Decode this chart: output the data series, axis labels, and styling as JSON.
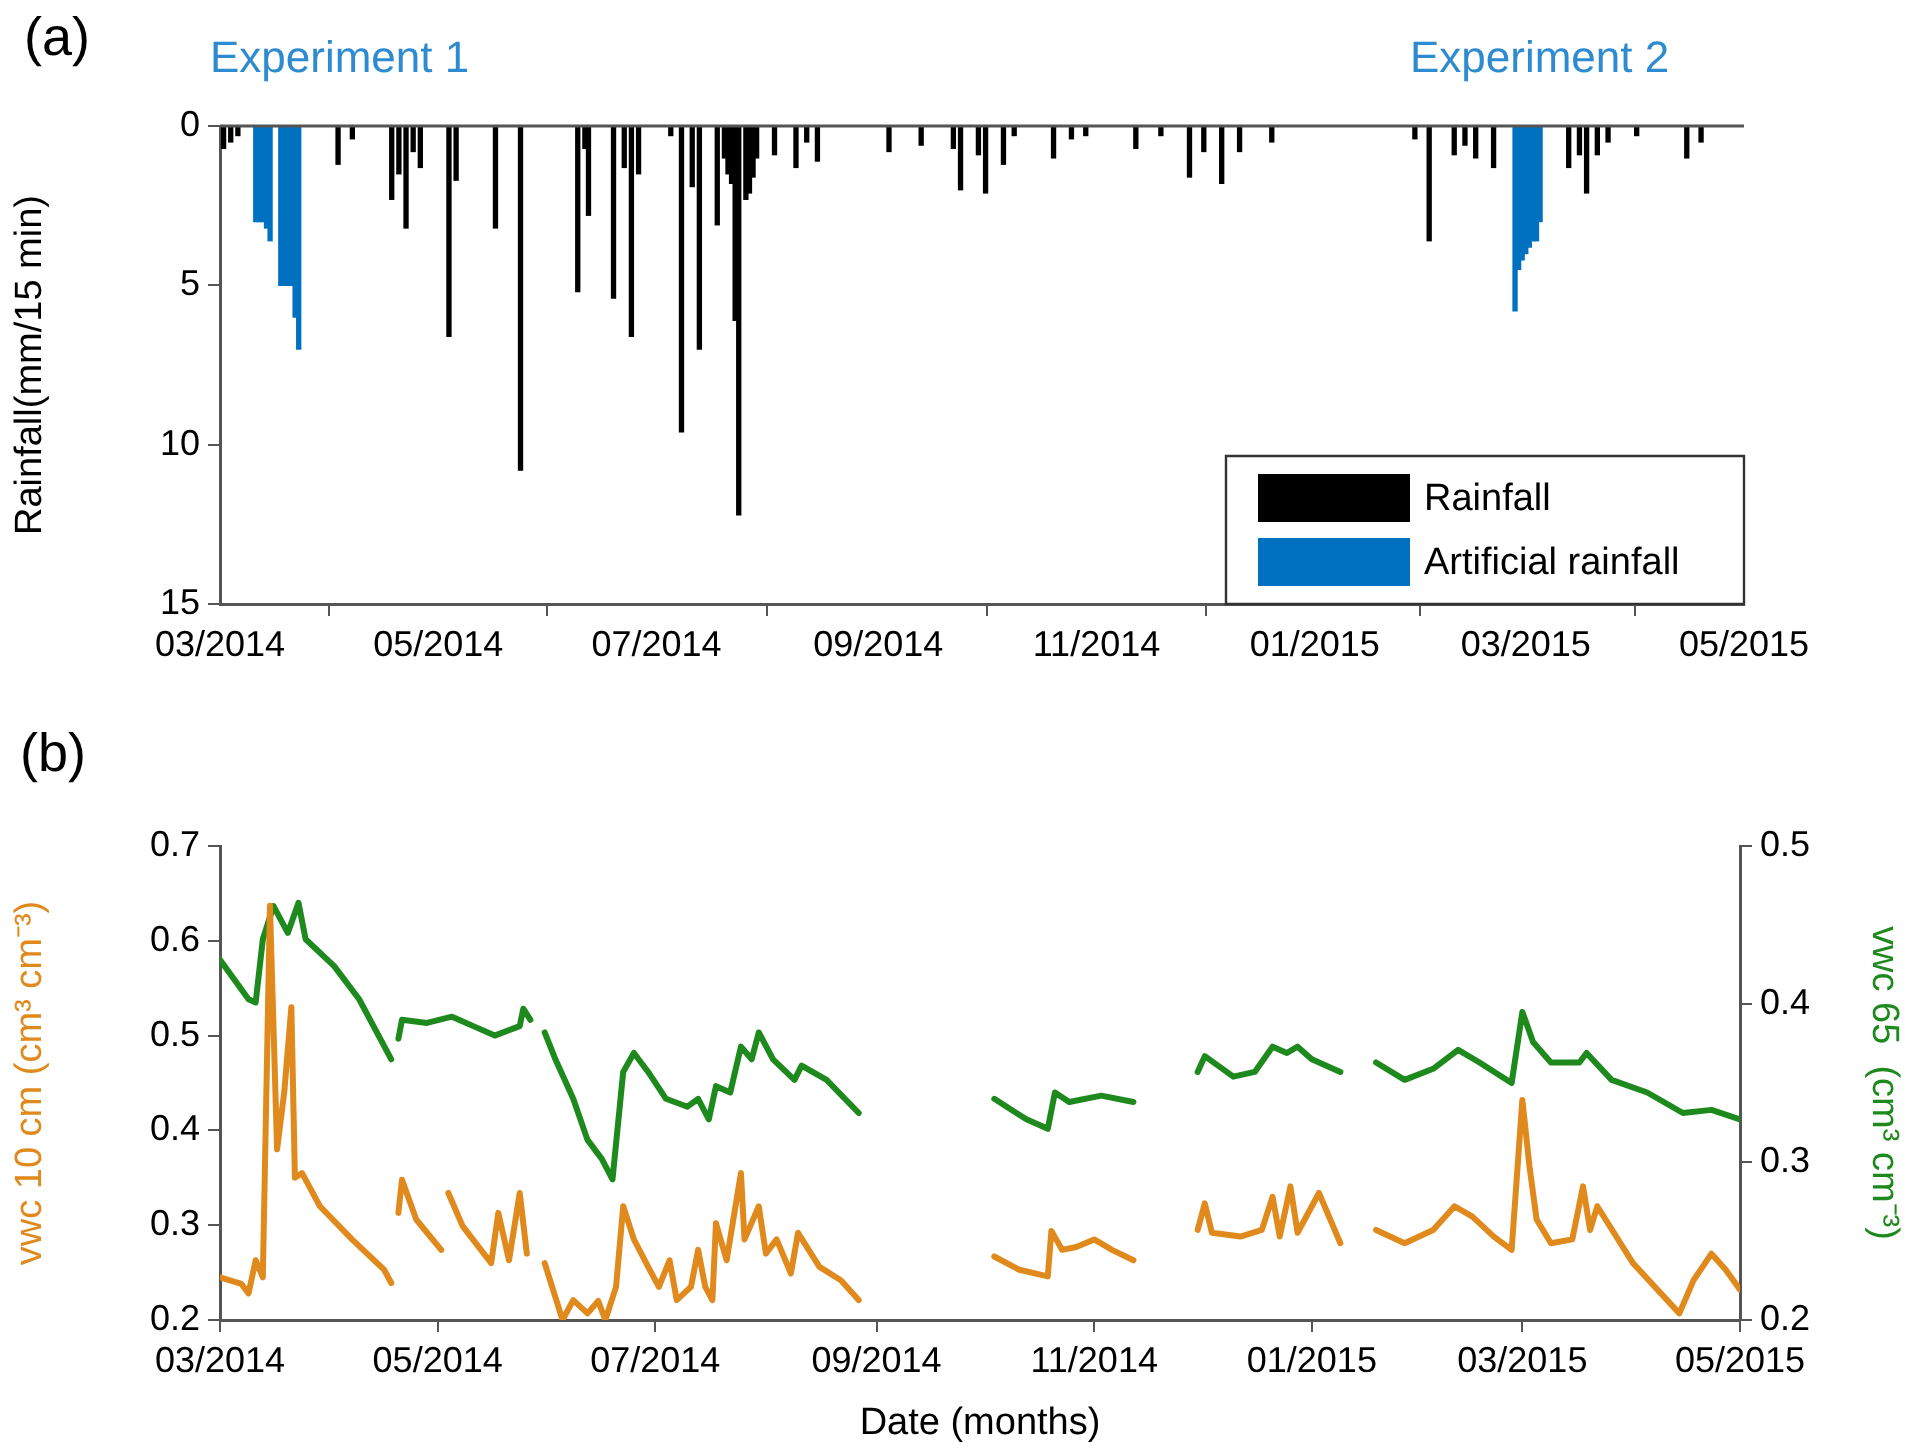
{
  "chart_data": [
    {
      "type": "bar",
      "ylabel": "Rainfall(mm/15 min)",
      "annotations": [
        "(a)",
        "Experiment 1",
        "Experiment 2"
      ],
      "legend": "bottom right",
      "xlim": [
        "2014-03-01",
        "2015-05-01"
      ],
      "xticks": [
        {
          "value": "2014-03-01",
          "label": "03/2014"
        },
        {
          "value": "2014-05-01",
          "label": "05/2014"
        },
        {
          "value": "2014-07-01",
          "label": "07/2014"
        },
        {
          "value": "2014-09-01",
          "label": "09/2014"
        },
        {
          "value": "2014-11-01",
          "label": "11/2014"
        },
        {
          "value": "2015-01-01",
          "label": "01/2015"
        },
        {
          "value": "2015-03-01",
          "label": "03/2015"
        },
        {
          "value": "2015-05-01",
          "label": "05/2015"
        }
      ],
      "ylim": [
        15,
        0
      ],
      "yticks": [
        0,
        5,
        10,
        15
      ],
      "series": [
        {
          "name": "Rainfall",
          "color": "#000000",
          "x": [
            "2014-03-02",
            "2014-03-04",
            "2014-03-06",
            "2014-04-03",
            "2014-04-07",
            "2014-04-18",
            "2014-04-20",
            "2014-04-22",
            "2014-04-24",
            "2014-04-26",
            "2014-05-04",
            "2014-05-06",
            "2014-05-17",
            "2014-05-24",
            "2014-06-09",
            "2014-06-11",
            "2014-06-12",
            "2014-06-19",
            "2014-06-22",
            "2014-06-24",
            "2014-06-26",
            "2014-07-05",
            "2014-07-08",
            "2014-07-11",
            "2014-07-13",
            "2014-07-18",
            "2014-07-20",
            "2014-07-21",
            "2014-07-22",
            "2014-07-23",
            "2014-07-24",
            "2014-07-26",
            "2014-07-27",
            "2014-07-28",
            "2014-07-29",
            "2014-08-03",
            "2014-08-09",
            "2014-08-12",
            "2014-08-15",
            "2014-09-04",
            "2014-09-13",
            "2014-09-22",
            "2014-09-24",
            "2014-09-29",
            "2014-10-01",
            "2014-10-06",
            "2014-10-09",
            "2014-10-20",
            "2014-10-25",
            "2014-10-29",
            "2014-11-12",
            "2014-11-19",
            "2014-11-27",
            "2014-12-01",
            "2014-12-06",
            "2014-12-11",
            "2014-12-20",
            "2015-01-29",
            "2015-02-02",
            "2015-02-09",
            "2015-02-12",
            "2015-02-15",
            "2015-02-20",
            "2015-03-13",
            "2015-03-16",
            "2015-03-18",
            "2015-03-21",
            "2015-03-24",
            "2015-04-01",
            "2015-04-15",
            "2015-04-19"
          ],
          "values": [
            0.7,
            0.5,
            0.3,
            1.2,
            0.4,
            2.3,
            1.5,
            3.2,
            0.8,
            1.3,
            6.6,
            1.7,
            3.2,
            10.8,
            5.2,
            0.7,
            2.8,
            5.4,
            1.3,
            6.6,
            1.5,
            0.3,
            9.6,
            1.9,
            7.0,
            3.1,
            1.0,
            1.5,
            1.8,
            6.1,
            12.2,
            2.3,
            2.1,
            1.6,
            1.0,
            0.9,
            1.3,
            0.5,
            1.1,
            0.8,
            0.6,
            0.7,
            2.0,
            0.9,
            2.1,
            1.2,
            0.3,
            1.0,
            0.4,
            0.3,
            0.7,
            0.3,
            1.6,
            0.8,
            1.8,
            0.8,
            0.5,
            0.4,
            3.6,
            0.9,
            0.6,
            1.0,
            1.3,
            1.3,
            0.9,
            2.1,
            0.9,
            0.5,
            0.3,
            1.0,
            0.5
          ]
        },
        {
          "name": "Artificial rainfall",
          "color": "#0070c0",
          "x": [
            "2014-03-11",
            "2014-03-12",
            "2014-03-13",
            "2014-03-14",
            "2014-03-15",
            "2014-03-18",
            "2014-03-19",
            "2014-03-20",
            "2014-03-21",
            "2014-03-22",
            "2014-03-23",
            "2015-02-26",
            "2015-02-27",
            "2015-02-28",
            "2015-03-01",
            "2015-03-02",
            "2015-03-03",
            "2015-03-04",
            "2015-03-05"
          ],
          "values": [
            3.0,
            3.0,
            3.0,
            3.2,
            3.6,
            5.0,
            5.0,
            5.0,
            5.0,
            6.0,
            7.0,
            5.8,
            4.5,
            4.2,
            4.0,
            3.8,
            3.6,
            3.6,
            3.0
          ]
        }
      ]
    },
    {
      "type": "line",
      "xlabel": "Date (months)",
      "ylabel": "vwc 10 cm (cm³ cm⁻³)",
      "y2label": "vwc 65  (cm³ cm⁻³)",
      "annotations": [
        "(b)"
      ],
      "xlim": [
        "2014-03-01",
        "2015-05-01"
      ],
      "xticks": [
        {
          "value": "2014-03-01",
          "label": "03/2014"
        },
        {
          "value": "2014-05-01",
          "label": "05/2014"
        },
        {
          "value": "2014-07-01",
          "label": "07/2014"
        },
        {
          "value": "2014-09-01",
          "label": "09/2014"
        },
        {
          "value": "2014-11-01",
          "label": "11/2014"
        },
        {
          "value": "2015-01-01",
          "label": "01/2015"
        },
        {
          "value": "2015-03-01",
          "label": "03/2015"
        },
        {
          "value": "2015-05-01",
          "label": "05/2015"
        }
      ],
      "ylim": [
        0.2,
        0.7
      ],
      "yticks": [
        0.2,
        0.3,
        0.4,
        0.5,
        0.6,
        0.7
      ],
      "y2lim": [
        0.2,
        0.5
      ],
      "y2ticks": [
        0.2,
        0.3,
        0.4,
        0.5
      ],
      "series": [
        {
          "color": "#e08a1e",
          "x": [
            "2014-03-01",
            "2014-03-07",
            "2014-03-09",
            "2014-03-11",
            "2014-03-13",
            "2014-03-15",
            "2014-03-17",
            "2014-03-19",
            "2014-03-21",
            "2014-03-22",
            "2014-03-24",
            "2014-03-29",
            "2014-04-07",
            "2014-04-16",
            "2014-04-18",
            "2014-04-19",
            "2014-04-20",
            "2014-04-21",
            "2014-04-25",
            "2014-05-02",
            "2014-05-03",
            "2014-05-04",
            "2014-05-08",
            "2014-05-16",
            "2014-05-18",
            "2014-05-21",
            "2014-05-24",
            "2014-05-26",
            "2014-05-28",
            "2014-05-31",
            "2014-06-05",
            "2014-06-08",
            "2014-06-12",
            "2014-06-15",
            "2014-06-17",
            "2014-06-20",
            "2014-06-22",
            "2014-06-25",
            "2014-06-29",
            "2014-07-02",
            "2014-07-05",
            "2014-07-07",
            "2014-07-11",
            "2014-07-13",
            "2014-07-15",
            "2014-07-17",
            "2014-07-18",
            "2014-07-21",
            "2014-07-25",
            "2014-07-26",
            "2014-07-30",
            "2014-08-01",
            "2014-08-04",
            "2014-08-08",
            "2014-08-10",
            "2014-08-16",
            "2014-08-22",
            "2014-08-27",
            "2014-09-15",
            "2014-10-04",
            "2014-10-11",
            "2014-10-19",
            "2014-10-20",
            "2014-10-23",
            "2014-10-27",
            "2014-11-01",
            "2014-11-06",
            "2014-11-12",
            "2014-11-20",
            "2014-11-30",
            "2014-12-02",
            "2014-12-04",
            "2014-12-12",
            "2014-12-18",
            "2014-12-21",
            "2014-12-23",
            "2014-12-26",
            "2014-12-28",
            "2015-01-03",
            "2015-01-09",
            "2015-01-14",
            "2015-01-19",
            "2015-01-27",
            "2015-02-04",
            "2015-02-10",
            "2015-02-15",
            "2015-02-21",
            "2015-02-26",
            "2015-03-01",
            "2015-03-03",
            "2015-03-05",
            "2015-03-09",
            "2015-03-15",
            "2015-03-18",
            "2015-03-20",
            "2015-03-22",
            "2015-04-01",
            "2015-04-14",
            "2015-04-18",
            "2015-04-23",
            "2015-04-27",
            "2015-05-01"
          ],
          "values": [
            0.245,
            0.238,
            0.228,
            0.263,
            0.245,
            0.637,
            0.38,
            0.44,
            0.53,
            0.35,
            0.355,
            0.32,
            0.285,
            0.253,
            0.239,
            null,
            0.313,
            0.348,
            0.306,
            0.274,
            null,
            0.334,
            0.299,
            0.26,
            0.313,
            0.263,
            0.334,
            0.27,
            null,
            0.26,
            0.2,
            0.221,
            0.207,
            0.22,
            0.2,
            0.235,
            0.32,
            0.285,
            0.256,
            0.235,
            0.263,
            0.221,
            0.235,
            0.274,
            0.235,
            0.221,
            0.302,
            0.263,
            0.355,
            0.285,
            0.32,
            0.27,
            0.285,
            0.249,
            0.292,
            0.256,
            0.242,
            0.221,
            null,
            0.267,
            0.253,
            0.246,
            0.294,
            0.274,
            0.277,
            0.285,
            0.274,
            0.263,
            null,
            0.295,
            0.323,
            0.292,
            0.288,
            0.295,
            0.33,
            0.288,
            0.341,
            0.292,
            0.334,
            0.281,
            null,
            0.295,
            0.281,
            0.295,
            0.32,
            0.309,
            0.288,
            0.274,
            0.432,
            0.362,
            0.306,
            0.281,
            0.285,
            0.341,
            0.295,
            0.32,
            0.26,
            0.207,
            0.242,
            0.27,
            0.253,
            0.232
          ]
        },
        {
          "color": "#1e8a1e",
          "axis": "y2",
          "x": [
            "2014-03-01",
            "2014-03-09",
            "2014-03-11",
            "2014-03-13",
            "2014-03-16",
            "2014-03-20",
            "2014-03-23",
            "2014-03-25",
            "2014-04-02",
            "2014-04-09",
            "2014-04-18",
            "2014-04-19",
            "2014-04-20",
            "2014-04-21",
            "2014-04-28",
            "2014-05-05",
            "2014-05-11",
            "2014-05-17",
            "2014-05-24",
            "2014-05-25",
            "2014-05-27",
            "2014-05-29",
            "2014-05-31",
            "2014-06-03",
            "2014-06-08",
            "2014-06-12",
            "2014-06-16",
            "2014-06-19",
            "2014-06-22",
            "2014-06-25",
            "2014-06-29",
            "2014-07-04",
            "2014-07-10",
            "2014-07-13",
            "2014-07-16",
            "2014-07-18",
            "2014-07-22",
            "2014-07-25",
            "2014-07-28",
            "2014-07-30",
            "2014-08-03",
            "2014-08-09",
            "2014-08-11",
            "2014-08-18",
            "2014-08-27",
            "2014-09-15",
            "2014-10-04",
            "2014-10-13",
            "2014-10-19",
            "2014-10-21",
            "2014-10-25",
            "2014-11-03",
            "2014-11-12",
            "2014-11-20",
            "2014-11-30",
            "2014-12-02",
            "2014-12-10",
            "2014-12-16",
            "2014-12-21",
            "2014-12-25",
            "2014-12-28",
            "2015-01-01",
            "2015-01-09",
            "2015-01-14",
            "2015-01-19",
            "2015-01-27",
            "2015-02-04",
            "2015-02-11",
            "2015-02-17",
            "2015-02-26",
            "2015-03-01",
            "2015-03-04",
            "2015-03-09",
            "2015-03-17",
            "2015-03-19",
            "2015-03-26",
            "2015-04-05",
            "2015-04-15",
            "2015-04-23",
            "2015-05-01"
          ],
          "values": [
            0.428,
            0.403,
            0.401,
            0.441,
            0.462,
            0.445,
            0.464,
            0.441,
            0.424,
            0.403,
            0.365,
            null,
            0.378,
            0.39,
            0.388,
            0.392,
            0.386,
            0.38,
            0.386,
            0.397,
            0.39,
            null,
            0.382,
            0.365,
            0.34,
            0.314,
            0.302,
            0.289,
            0.357,
            0.369,
            0.357,
            0.34,
            0.335,
            0.34,
            0.327,
            0.348,
            0.344,
            0.373,
            0.365,
            0.382,
            0.365,
            0.352,
            0.361,
            0.352,
            0.331,
            null,
            0.34,
            0.327,
            0.321,
            0.344,
            0.338,
            0.342,
            0.338,
            null,
            0.357,
            0.367,
            0.354,
            0.357,
            0.373,
            0.369,
            0.373,
            0.365,
            0.357,
            null,
            0.363,
            0.352,
            0.359,
            0.371,
            0.363,
            0.35,
            0.395,
            0.376,
            0.363,
            0.363,
            0.369,
            0.352,
            0.344,
            0.331,
            0.333,
            0.327
          ]
        }
      ]
    }
  ]
}
